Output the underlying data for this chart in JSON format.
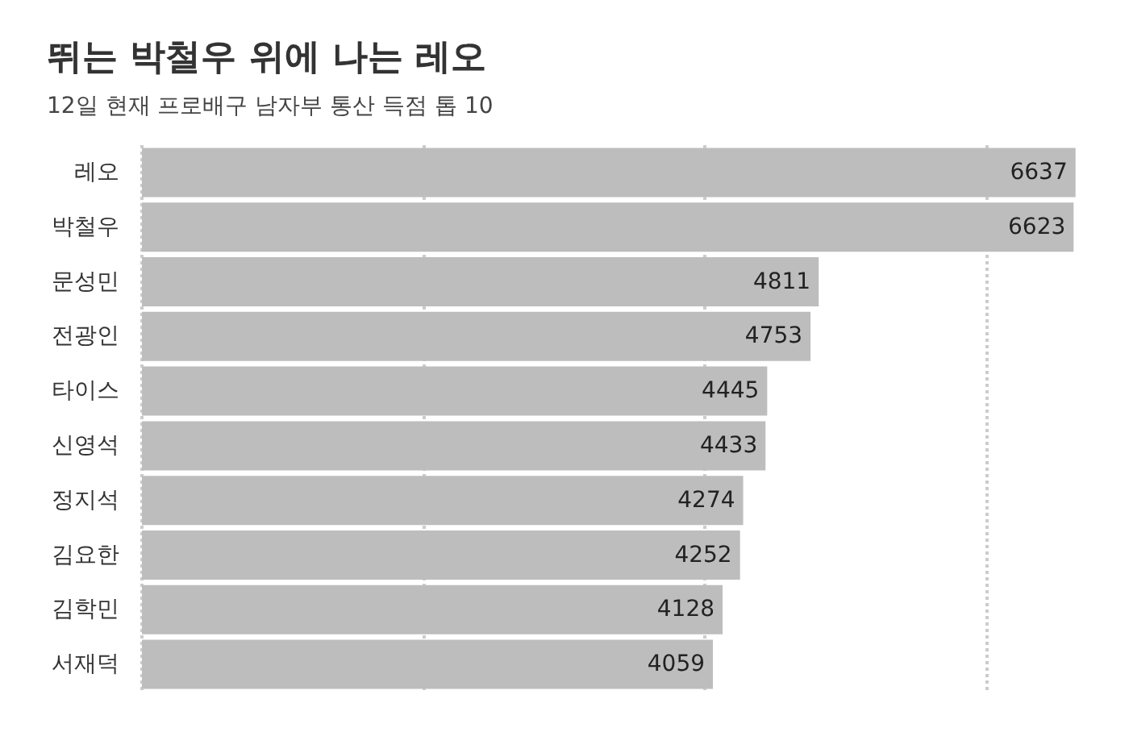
{
  "chart_data": {
    "type": "bar",
    "orientation": "horizontal",
    "title": "뛰는 박철우 위에 나는 레오",
    "subtitle": "12일 현재 프로배구 남자부 통산 득점 톱 10",
    "categories": [
      "레오",
      "박철우",
      "문성민",
      "전광인",
      "타이스",
      "신영석",
      "정지석",
      "김요한",
      "김학민",
      "서재덕"
    ],
    "values": [
      6637,
      6623,
      4811,
      4753,
      4445,
      4433,
      4274,
      4252,
      4128,
      4059
    ],
    "color": "#bdbdbd",
    "data_labels": true,
    "grid": "x",
    "tick_labels": "y",
    "xlim": [
      0,
      6650
    ],
    "xticks": [
      {
        "value": 0,
        "label": null
      },
      {
        "value": 2000,
        "label": null
      },
      {
        "value": 4000,
        "label": null
      },
      {
        "value": 6000,
        "label": null
      }
    ]
  }
}
